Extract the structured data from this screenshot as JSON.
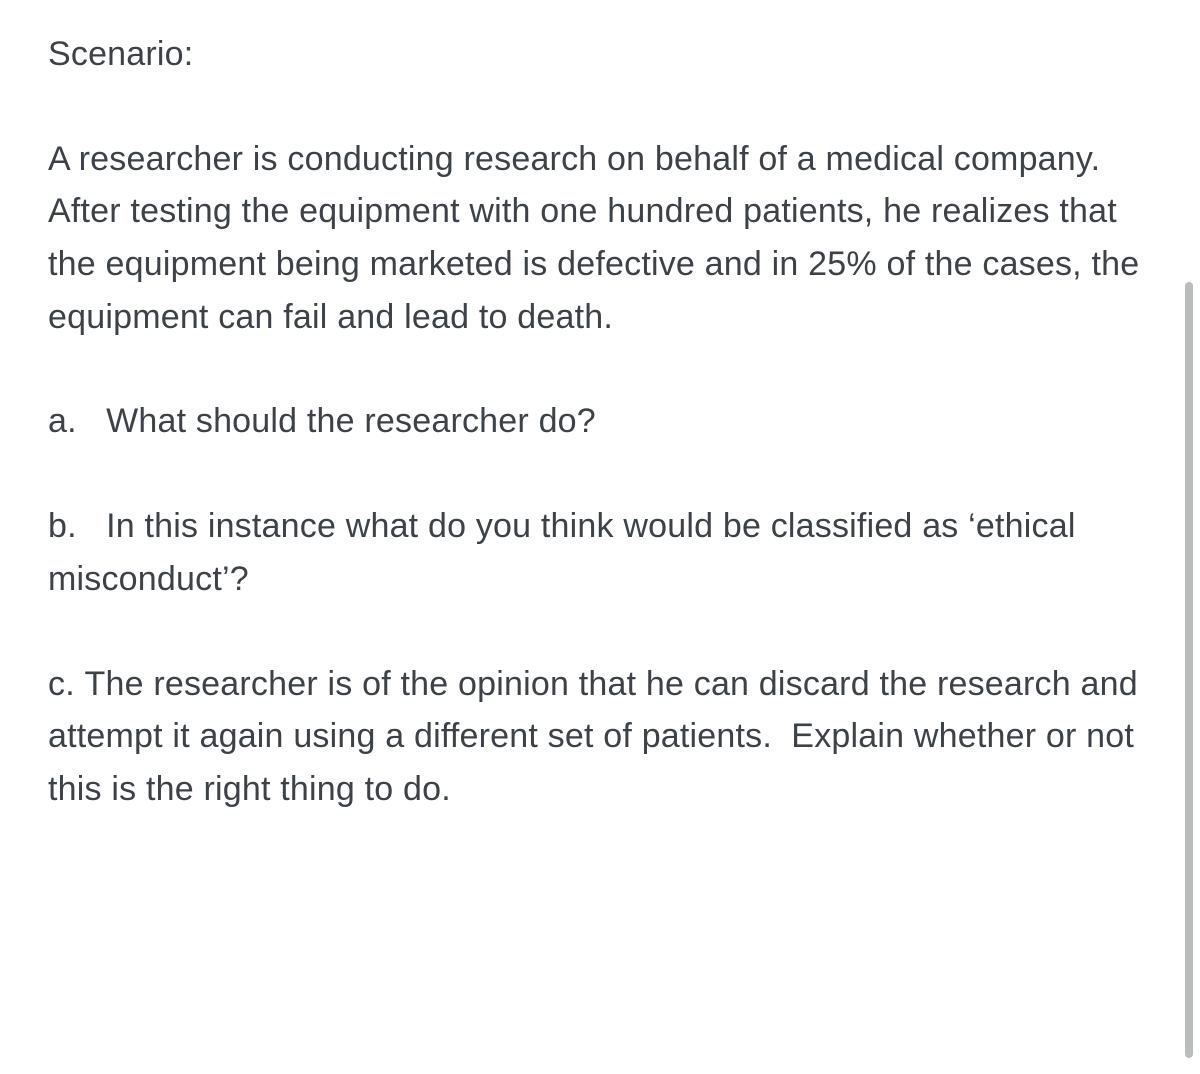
{
  "text_color": "#3d4248",
  "background_color": "#ffffff",
  "scrollbar_color": "#babcbe",
  "font_size": 34,
  "heading": "Scenario:",
  "scenario": "A researcher is conducting research on behalf of a medical company. After testing the equipment with one hundred patients, he realizes that the equipment being marketed is defective and in 25% of the cases, the equipment can fail and lead to death.",
  "questions": [
    {
      "label": "a.",
      "text": "What should the researcher do?"
    },
    {
      "label": "b.",
      "text": "In this instance what do you think would be classified as ‘ethical misconduct’?"
    },
    {
      "label": "c.",
      "text": "The researcher is of the opinion that he can discard the research and attempt it again using a different set of patients.  Explain whether or not this is the right thing to do."
    }
  ]
}
